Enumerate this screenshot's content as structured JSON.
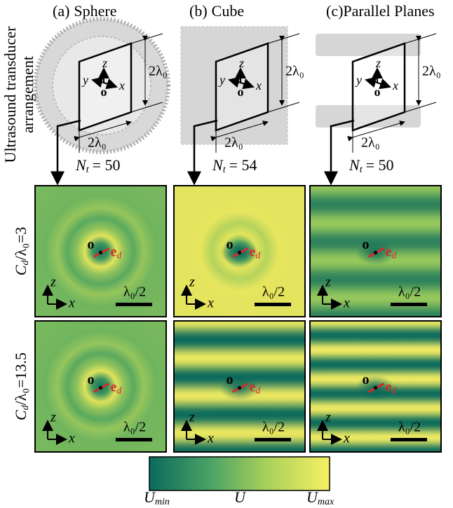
{
  "side_title": [
    "Ultrasound transducer",
    "arrangement"
  ],
  "columns": [
    {
      "tag": "(a)",
      "name": "Sphere",
      "height_label": "2λ₀",
      "width_label": "2λ₀",
      "count_symbol": "N",
      "count_sub": "t",
      "count_text": "= 50"
    },
    {
      "tag": "(b)",
      "name": "Cube",
      "height_label": "2λ₀",
      "width_label": "2λ₀",
      "count_symbol": "N",
      "count_sub": "t",
      "count_text": "= 54"
    },
    {
      "tag": "(c)",
      "name": "Parallel Planes",
      "height_label": "2λ₀",
      "width_label": "2λ₀",
      "count_symbol": "N",
      "count_sub": "t",
      "count_text": "= 50"
    }
  ],
  "schematic_axes": {
    "z": "z",
    "y": "y",
    "x": "x",
    "origin": "o"
  },
  "rows": [
    {
      "symbol": "C",
      "sub": "d",
      "text": "/λ₀=3"
    },
    {
      "symbol": "C",
      "sub": "d",
      "text": "/λ₀=13.5"
    }
  ],
  "panel": {
    "origin": "o",
    "dipole": "e",
    "dipole_sub": "d",
    "scale": "λ₀/2",
    "axis_z": "z",
    "axis_x": "x"
  },
  "colorbar": {
    "min": "U",
    "min_sub": "min",
    "mid": "U",
    "max": "U",
    "max_sub": "max"
  }
}
